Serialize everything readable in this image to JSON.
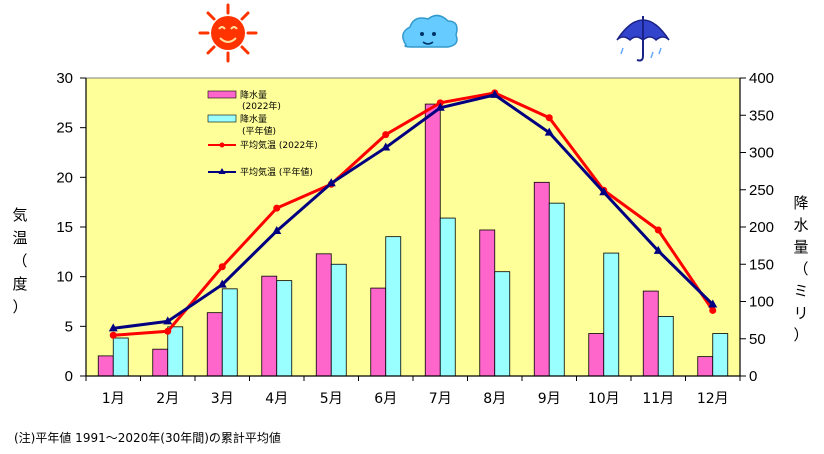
{
  "chart_data": {
    "type": "bar+line",
    "categories": [
      "1月",
      "2月",
      "3月",
      "4月",
      "5月",
      "6月",
      "7月",
      "8月",
      "9月",
      "10月",
      "11月",
      "12月"
    ],
    "y_left": {
      "label": [
        "気",
        "温",
        "（",
        "度",
        "）"
      ],
      "range": [
        0,
        30
      ],
      "ticks": [
        0,
        5,
        10,
        15,
        20,
        25,
        30
      ]
    },
    "y_right": {
      "label": [
        "降",
        "水",
        "量",
        "（",
        "ミ",
        "リ",
        "）"
      ],
      "range": [
        0,
        400
      ],
      "ticks": [
        0,
        50,
        100,
        150,
        200,
        250,
        300,
        350,
        400
      ]
    },
    "bar_series": [
      {
        "legend": [
          "降水量",
          "(2022年)"
        ],
        "color": "#ff66cc",
        "axis": "right",
        "values": [
          27,
          36,
          85,
          134,
          164,
          118,
          365,
          196,
          260,
          57,
          114,
          26
        ]
      },
      {
        "legend": [
          "降水量",
          "(平年値)"
        ],
        "color": "#99ffff",
        "axis": "right",
        "values": [
          51,
          66,
          117,
          128,
          150,
          187,
          212,
          140,
          232,
          165,
          80,
          57
        ]
      }
    ],
    "line_series": [
      {
        "legend": "平均気温 (2022年)",
        "color": "#ff0000",
        "marker": "circle",
        "axis": "left",
        "values": [
          4.1,
          4.5,
          11.0,
          16.9,
          19.3,
          24.3,
          27.5,
          28.5,
          26.0,
          18.7,
          14.7,
          6.6
        ]
      },
      {
        "legend": "平均気温 (平年値)",
        "color": "#000080",
        "marker": "triangle",
        "axis": "left",
        "values": [
          4.8,
          5.5,
          9.2,
          14.6,
          19.4,
          23.0,
          27.0,
          28.3,
          24.5,
          18.5,
          12.6,
          7.2
        ]
      }
    ],
    "plot_background": "#ffff99",
    "grid": false
  },
  "footnote": "(注)平年値 1991〜2020年(30年間)の累計平均値",
  "icons": [
    "sun-icon",
    "cloud-icon",
    "umbrella-icon"
  ]
}
